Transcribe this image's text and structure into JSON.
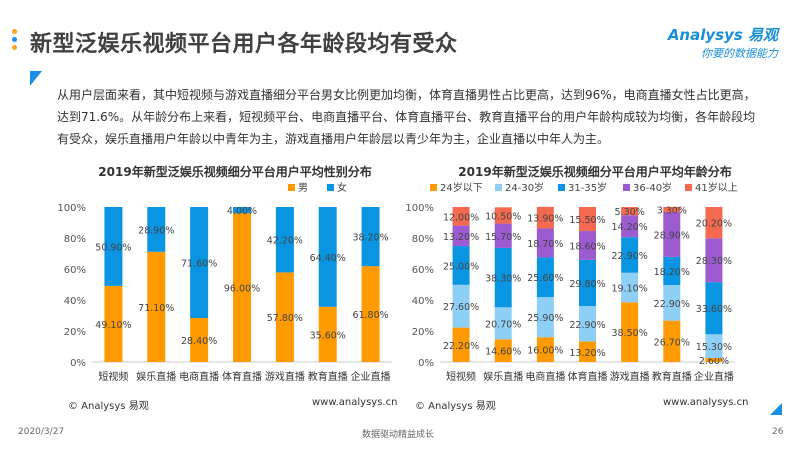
{
  "header": {
    "title": "新型泛娱乐视频平台用户各年龄段均有受众",
    "logo_line1": "Analysys 易观",
    "logo_line2": "你要的数据能力"
  },
  "paragraph": "从用户层面来看，其中短视频与游戏直播细分平台男女比例更加均衡，体育直播男性占比更高，达到96%，电商直播女性占比更高，达到71.6%。从年龄分布上来看，短视频平台、电商直播平台、体育直播平台、教育直播平台的用户年龄构成较为均衡，各年龄段均有受众，娱乐直播用户年龄以中青年为主，游戏直播用户年龄层以青少年为主，企业直播以中年人为主。",
  "footer": {
    "left_source": "© Analysys 易观",
    "left_url": "www.analysys.cn",
    "right_source": "© Analysys 易观",
    "right_url": "www.analysys.cn",
    "date": "2020/3/27",
    "slogan": "数据驱动精益成长",
    "page": "26"
  },
  "colors": {
    "orange": "#FF9A00",
    "blue": "#0A95E3",
    "light_blue": "#8ED0F5",
    "purple": "#9D5BD2",
    "red": "#F36A50"
  },
  "chart_data": [
    {
      "type": "bar",
      "stacked": true,
      "title": "2019年新型泛娱乐视频细分平台用户平均性别分布",
      "categories": [
        "短视频",
        "娱乐直播",
        "电商直播",
        "体育直播",
        "游戏直播",
        "教育直播",
        "企业直播"
      ],
      "series": [
        {
          "name": "男",
          "color": "#FF9A00",
          "values": [
            49.1,
            71.1,
            28.4,
            96.0,
            57.8,
            35.6,
            61.8
          ]
        },
        {
          "name": "女",
          "color": "#0A95E3",
          "values": [
            50.9,
            28.9,
            71.6,
            4.0,
            42.2,
            64.4,
            38.2
          ]
        }
      ],
      "yticks": [
        "0%",
        "20%",
        "40%",
        "60%",
        "80%",
        "100%"
      ],
      "ylim": [
        0,
        100
      ],
      "legend": "top"
    },
    {
      "type": "bar",
      "stacked": true,
      "title": "2019年新型泛娱乐视频细分平台用户平均年龄分布",
      "categories": [
        "短视频",
        "娱乐直播",
        "电商直播",
        "体育直播",
        "游戏直播",
        "教育直播",
        "企业直播"
      ],
      "series": [
        {
          "name": "24岁以下",
          "color": "#FF9A00",
          "values": [
            22.2,
            14.6,
            16.0,
            13.2,
            38.5,
            26.7,
            2.6
          ]
        },
        {
          "name": "24-30岁",
          "color": "#8ED0F5",
          "values": [
            27.6,
            20.7,
            25.9,
            22.9,
            19.1,
            22.9,
            15.3
          ]
        },
        {
          "name": "31-35岁",
          "color": "#0A95E3",
          "values": [
            25.0,
            38.3,
            25.6,
            29.8,
            22.9,
            18.2,
            33.6
          ]
        },
        {
          "name": "36-40岁",
          "color": "#9D5BD2",
          "values": [
            13.2,
            15.7,
            18.7,
            18.6,
            14.2,
            28.9,
            28.3
          ]
        },
        {
          "name": "41岁以上",
          "color": "#F36A50",
          "values": [
            12.0,
            10.5,
            13.9,
            15.5,
            5.3,
            3.3,
            20.2
          ]
        }
      ],
      "yticks": [
        "0%",
        "20%",
        "40%",
        "60%",
        "80%",
        "100%"
      ],
      "ylim": [
        0,
        100
      ],
      "legend": "top"
    }
  ]
}
